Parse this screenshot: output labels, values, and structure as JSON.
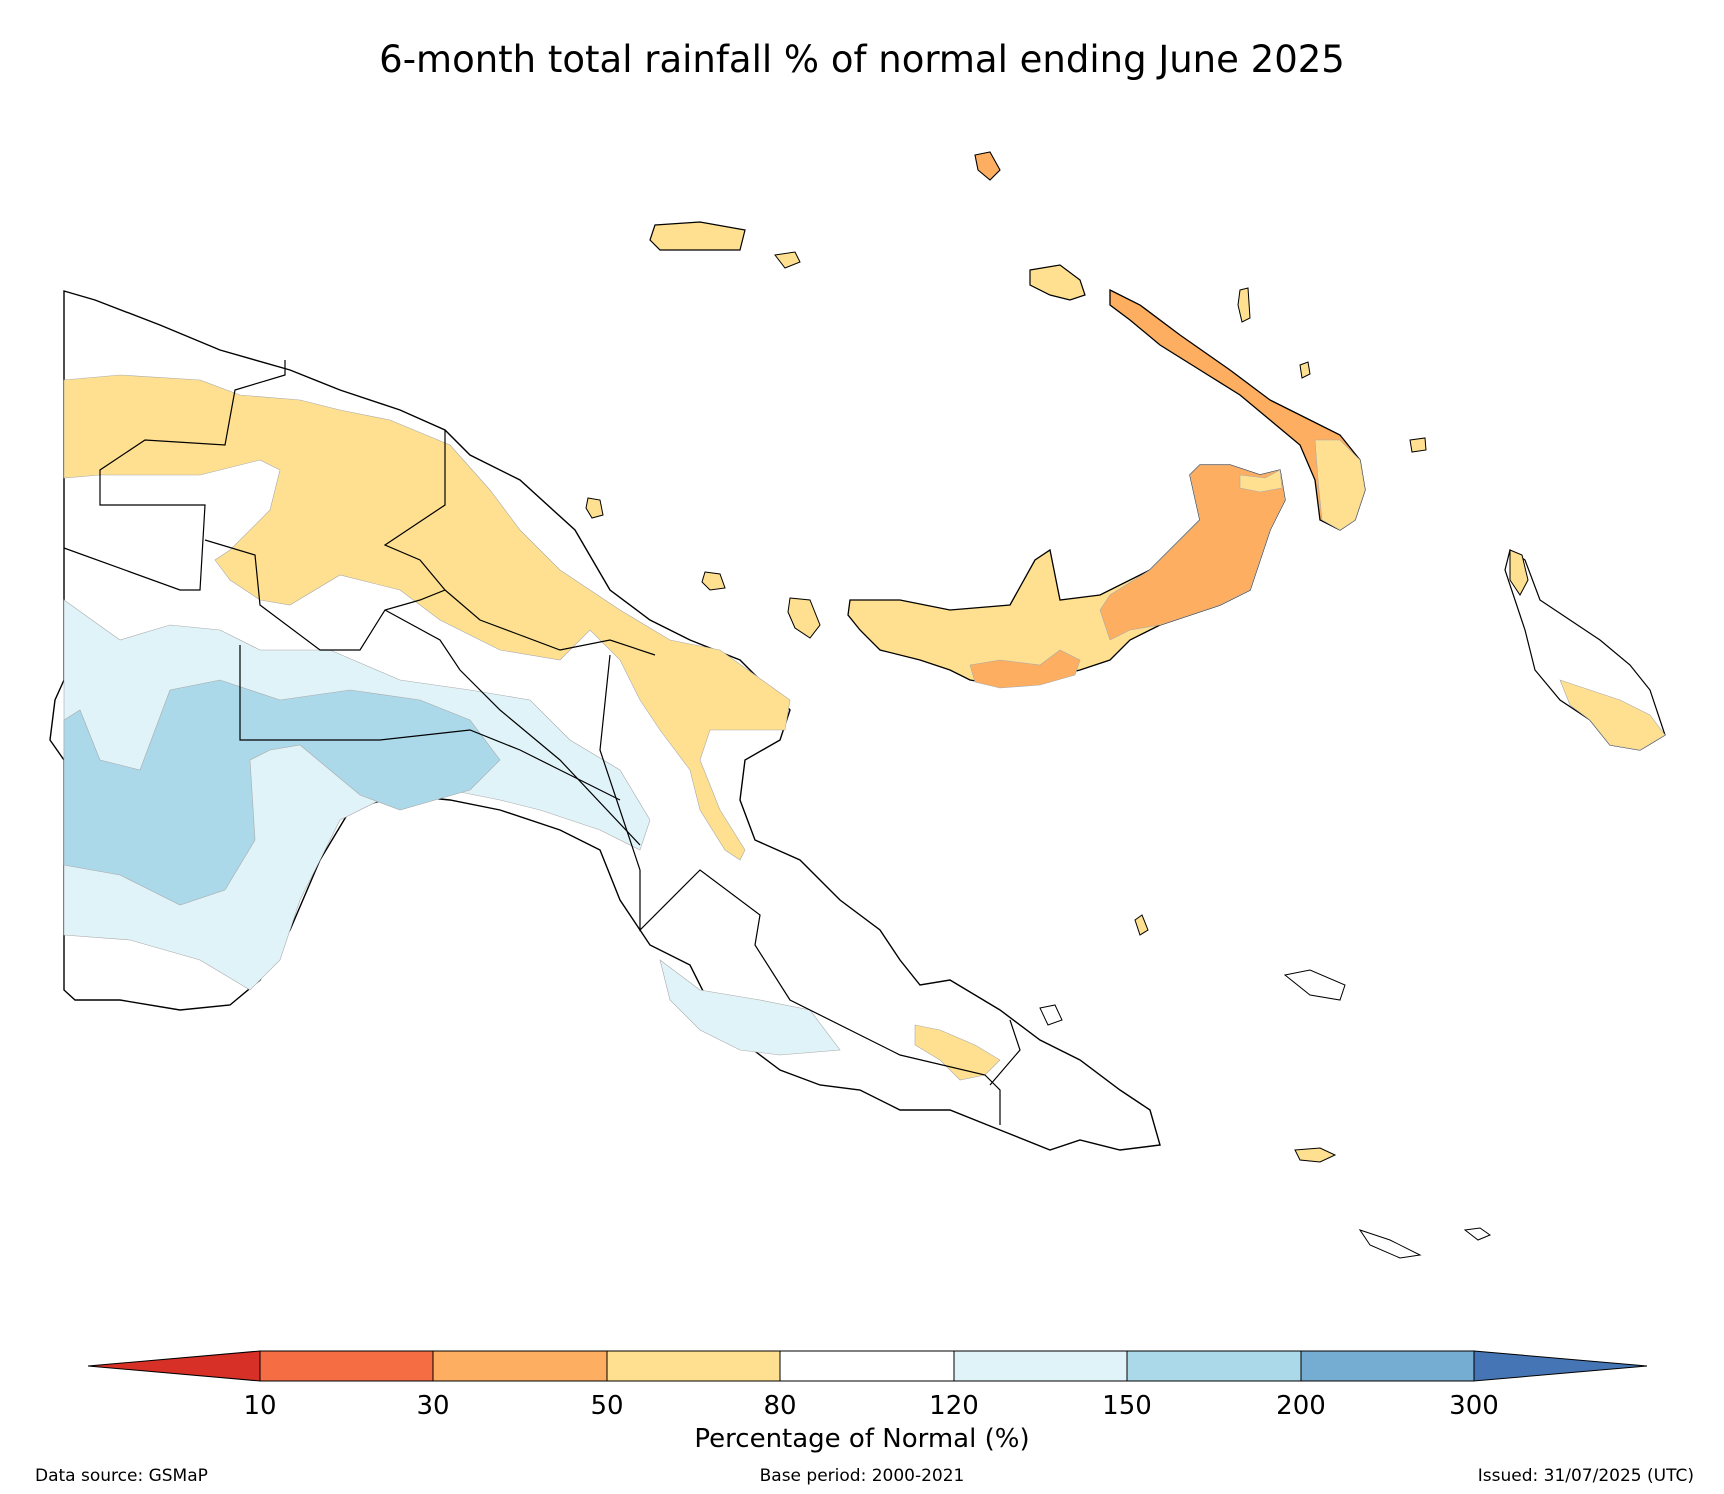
{
  "title": "6-month total rainfall % of normal ending June 2025",
  "colorbar": {
    "label": "Percentage of Normal (%)",
    "ticks": [
      "10",
      "30",
      "50",
      "80",
      "120",
      "150",
      "200",
      "300"
    ],
    "colors": {
      "below_10": "#d73027",
      "c10_30": "#f46d43",
      "c30_50": "#fdae61",
      "c50_80": "#fee090",
      "c80_120": "#ffffff",
      "c120_150": "#e0f3f8",
      "c150_200": "#abd9e9",
      "c200_300": "#74add1",
      "above_300": "#4575b4"
    }
  },
  "footer": {
    "source": "Data source: GSMaP",
    "base_period": "Base period: 2000-2021",
    "issued": "Issued: 31/07/2025 (UTC)"
  }
}
